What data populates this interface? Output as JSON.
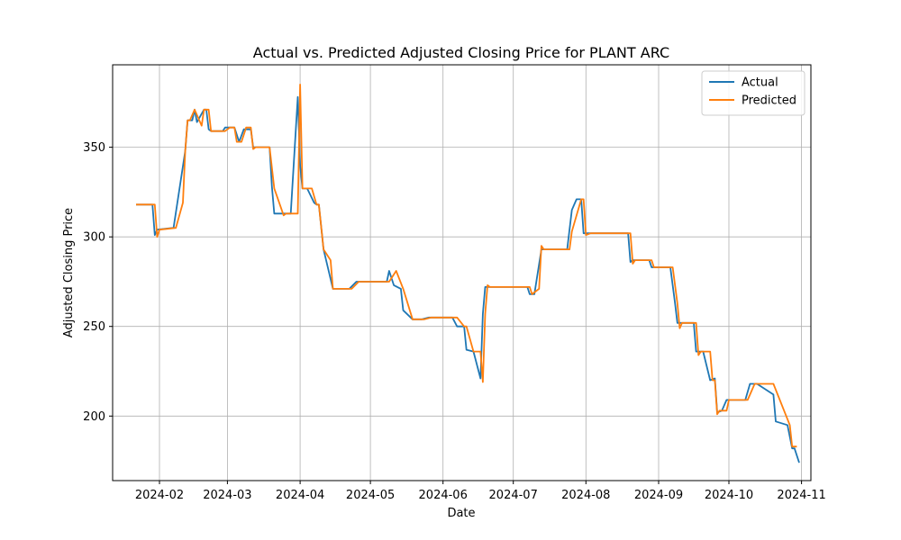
{
  "chart_data": {
    "type": "line",
    "title": "Actual vs. Predicted Adjusted Closing Price for PLANT ARC",
    "xlabel": "Date",
    "ylabel": "Adjusted Closing Price",
    "xlim": [
      "2024-01-12",
      "2024-11-05"
    ],
    "ylim": [
      164,
      396
    ],
    "x_ticks": [
      "2024-02-01",
      "2024-03-01",
      "2024-04-01",
      "2024-05-01",
      "2024-06-01",
      "2024-07-01",
      "2024-08-01",
      "2024-09-01",
      "2024-10-01",
      "2024-11-01"
    ],
    "x_tick_labels": [
      "2024-02",
      "2024-03",
      "2024-04",
      "2024-05",
      "2024-06",
      "2024-07",
      "2024-08",
      "2024-09",
      "2024-10",
      "2024-11"
    ],
    "y_ticks": [
      200,
      250,
      300,
      350
    ],
    "grid": true,
    "legend_position": "top-right",
    "series": [
      {
        "name": "Actual",
        "color": "#1f77b4",
        "points": [
          [
            "2024-01-22",
            318
          ],
          [
            "2024-01-29",
            318
          ],
          [
            "2024-01-30",
            301
          ],
          [
            "2024-01-31",
            304
          ],
          [
            "2024-02-07",
            305
          ],
          [
            "2024-02-12",
            348
          ],
          [
            "2024-02-13",
            365
          ],
          [
            "2024-02-15",
            365
          ],
          [
            "2024-02-16",
            371
          ],
          [
            "2024-02-17",
            364
          ],
          [
            "2024-02-20",
            371
          ],
          [
            "2024-02-21",
            371
          ],
          [
            "2024-02-22",
            360
          ],
          [
            "2024-02-23",
            359
          ],
          [
            "2024-02-28",
            359
          ],
          [
            "2024-02-29",
            361
          ],
          [
            "2024-03-04",
            361
          ],
          [
            "2024-03-06",
            353
          ],
          [
            "2024-03-08",
            360
          ],
          [
            "2024-03-11",
            360
          ],
          [
            "2024-03-12",
            350
          ],
          [
            "2024-03-19",
            350
          ],
          [
            "2024-03-20",
            328
          ],
          [
            "2024-03-21",
            313
          ],
          [
            "2024-03-25",
            313
          ],
          [
            "2024-03-28",
            313
          ],
          [
            "2024-03-31",
            378
          ],
          [
            "2024-04-01",
            340
          ],
          [
            "2024-04-02",
            327
          ],
          [
            "2024-04-04",
            327
          ],
          [
            "2024-04-07",
            319
          ],
          [
            "2024-04-08",
            318
          ],
          [
            "2024-04-09",
            318
          ],
          [
            "2024-04-11",
            293
          ],
          [
            "2024-04-15",
            271
          ],
          [
            "2024-04-22",
            271
          ],
          [
            "2024-04-25",
            275
          ],
          [
            "2024-05-08",
            275
          ],
          [
            "2024-05-09",
            281
          ],
          [
            "2024-05-11",
            273
          ],
          [
            "2024-05-14",
            271
          ],
          [
            "2024-05-15",
            259
          ],
          [
            "2024-05-19",
            254
          ],
          [
            "2024-05-23",
            254
          ],
          [
            "2024-05-26",
            255
          ],
          [
            "2024-06-05",
            255
          ],
          [
            "2024-06-07",
            250
          ],
          [
            "2024-06-10",
            250
          ],
          [
            "2024-06-11",
            237
          ],
          [
            "2024-06-14",
            236
          ],
          [
            "2024-06-17",
            221
          ],
          [
            "2024-06-18",
            257
          ],
          [
            "2024-06-19",
            272
          ],
          [
            "2024-06-20",
            272
          ],
          [
            "2024-06-21",
            272
          ],
          [
            "2024-07-07",
            272
          ],
          [
            "2024-07-08",
            268
          ],
          [
            "2024-07-10",
            268
          ],
          [
            "2024-07-13",
            293
          ],
          [
            "2024-07-24",
            293
          ],
          [
            "2024-07-26",
            315
          ],
          [
            "2024-07-28",
            321
          ],
          [
            "2024-07-30",
            321
          ],
          [
            "2024-07-31",
            302
          ],
          [
            "2024-08-01",
            302
          ],
          [
            "2024-08-19",
            302
          ],
          [
            "2024-08-20",
            286
          ],
          [
            "2024-08-21",
            287
          ],
          [
            "2024-08-28",
            287
          ],
          [
            "2024-08-29",
            283
          ],
          [
            "2024-09-05",
            283
          ],
          [
            "2024-09-06",
            283
          ],
          [
            "2024-09-08",
            263
          ],
          [
            "2024-09-09",
            252
          ],
          [
            "2024-09-15",
            252
          ],
          [
            "2024-09-16",
            252
          ],
          [
            "2024-09-17",
            236
          ],
          [
            "2024-09-20",
            236
          ],
          [
            "2024-09-23",
            220
          ],
          [
            "2024-09-25",
            221
          ],
          [
            "2024-09-26",
            202
          ],
          [
            "2024-09-28",
            203
          ],
          [
            "2024-09-30",
            209
          ],
          [
            "2024-10-08",
            209
          ],
          [
            "2024-10-10",
            218
          ],
          [
            "2024-10-13",
            218
          ],
          [
            "2024-10-20",
            212
          ],
          [
            "2024-10-21",
            197
          ],
          [
            "2024-10-26",
            195
          ],
          [
            "2024-10-28",
            182
          ],
          [
            "2024-10-29",
            182
          ],
          [
            "2024-10-31",
            174
          ]
        ]
      },
      {
        "name": "Predicted",
        "color": "#ff7f0e",
        "points": [
          [
            "2024-01-22",
            318
          ],
          [
            "2024-01-30",
            318
          ],
          [
            "2024-01-31",
            300
          ],
          [
            "2024-02-01",
            304
          ],
          [
            "2024-02-08",
            305
          ],
          [
            "2024-02-11",
            319
          ],
          [
            "2024-02-12",
            348
          ],
          [
            "2024-02-13",
            365
          ],
          [
            "2024-02-14",
            365
          ],
          [
            "2024-02-16",
            371
          ],
          [
            "2024-02-19",
            362
          ],
          [
            "2024-02-20",
            371
          ],
          [
            "2024-02-22",
            371
          ],
          [
            "2024-02-23",
            359
          ],
          [
            "2024-02-29",
            359
          ],
          [
            "2024-03-02",
            361
          ],
          [
            "2024-03-04",
            361
          ],
          [
            "2024-03-05",
            353
          ],
          [
            "2024-03-07",
            353
          ],
          [
            "2024-03-09",
            361
          ],
          [
            "2024-03-11",
            361
          ],
          [
            "2024-03-12",
            349
          ],
          [
            "2024-03-13",
            350
          ],
          [
            "2024-03-19",
            350
          ],
          [
            "2024-03-21",
            327
          ],
          [
            "2024-03-25",
            312
          ],
          [
            "2024-03-26",
            313
          ],
          [
            "2024-03-31",
            313
          ],
          [
            "2024-04-01",
            385
          ],
          [
            "2024-04-02",
            327
          ],
          [
            "2024-04-04",
            327
          ],
          [
            "2024-04-06",
            327
          ],
          [
            "2024-04-08",
            318
          ],
          [
            "2024-04-09",
            318
          ],
          [
            "2024-04-11",
            293
          ],
          [
            "2024-04-14",
            287
          ],
          [
            "2024-04-15",
            271
          ],
          [
            "2024-04-23",
            271
          ],
          [
            "2024-04-26",
            275
          ],
          [
            "2024-05-09",
            275
          ],
          [
            "2024-05-12",
            281
          ],
          [
            "2024-05-15",
            271
          ],
          [
            "2024-05-19",
            254
          ],
          [
            "2024-05-24",
            254
          ],
          [
            "2024-05-27",
            255
          ],
          [
            "2024-06-07",
            255
          ],
          [
            "2024-06-10",
            250
          ],
          [
            "2024-06-11",
            250
          ],
          [
            "2024-06-14",
            236
          ],
          [
            "2024-06-17",
            236
          ],
          [
            "2024-06-18",
            219
          ],
          [
            "2024-06-19",
            257
          ],
          [
            "2024-06-20",
            273
          ],
          [
            "2024-06-21",
            272
          ],
          [
            "2024-07-08",
            272
          ],
          [
            "2024-07-09",
            268
          ],
          [
            "2024-07-12",
            271
          ],
          [
            "2024-07-13",
            295
          ],
          [
            "2024-07-14",
            293
          ],
          [
            "2024-07-25",
            293
          ],
          [
            "2024-07-26",
            303
          ],
          [
            "2024-07-30",
            321
          ],
          [
            "2024-07-31",
            321
          ],
          [
            "2024-08-01",
            301
          ],
          [
            "2024-08-03",
            302
          ],
          [
            "2024-08-20",
            302
          ],
          [
            "2024-08-21",
            285
          ],
          [
            "2024-08-22",
            287
          ],
          [
            "2024-08-29",
            287
          ],
          [
            "2024-08-30",
            283
          ],
          [
            "2024-09-06",
            283
          ],
          [
            "2024-09-07",
            283
          ],
          [
            "2024-09-09",
            263
          ],
          [
            "2024-09-10",
            249
          ],
          [
            "2024-09-11",
            252
          ],
          [
            "2024-09-17",
            252
          ],
          [
            "2024-09-18",
            234
          ],
          [
            "2024-09-19",
            236
          ],
          [
            "2024-09-23",
            236
          ],
          [
            "2024-09-24",
            220
          ],
          [
            "2024-09-25",
            220
          ],
          [
            "2024-09-26",
            201
          ],
          [
            "2024-09-27",
            203
          ],
          [
            "2024-09-30",
            203
          ],
          [
            "2024-10-01",
            209
          ],
          [
            "2024-10-09",
            209
          ],
          [
            "2024-10-12",
            218
          ],
          [
            "2024-10-20",
            218
          ],
          [
            "2024-10-27",
            195
          ],
          [
            "2024-10-28",
            183
          ],
          [
            "2024-10-30",
            183
          ]
        ]
      }
    ]
  }
}
